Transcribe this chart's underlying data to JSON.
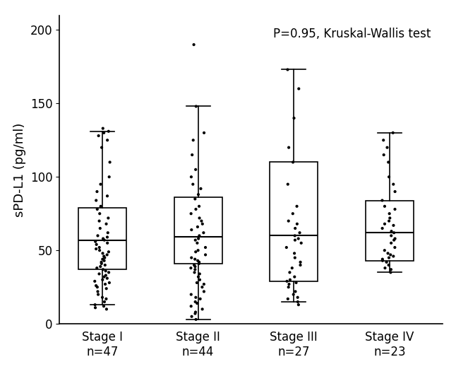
{
  "annotation": "P=0.95, Kruskal-Wallis test",
  "ylabel": "sPD-L1 (pg/ml)",
  "groups": [
    "Stage I",
    "Stage II",
    "Stage III",
    "Stage IV"
  ],
  "ns": [
    47,
    44,
    27,
    23
  ],
  "ylim": [
    0,
    210
  ],
  "yticks": [
    0,
    50,
    100,
    150,
    200
  ],
  "box_stats": {
    "Stage I": {
      "whislo": 13,
      "q1": 37,
      "med": 57,
      "q3": 79,
      "whishi": 131
    },
    "Stage II": {
      "whislo": 3,
      "q1": 41,
      "med": 59,
      "q3": 86,
      "whishi": 148
    },
    "Stage III": {
      "whislo": 15,
      "q1": 29,
      "med": 60,
      "q3": 110,
      "whishi": 173
    },
    "Stage IV": {
      "whislo": 35,
      "q1": 43,
      "med": 62,
      "q3": 84,
      "whishi": 130
    }
  },
  "jitter_data": {
    "Stage I": [
      10,
      13,
      15,
      17,
      18,
      20,
      22,
      24,
      25,
      26,
      27,
      28,
      29,
      30,
      31,
      32,
      33,
      34,
      35,
      36,
      37,
      38,
      39,
      40,
      41,
      42,
      43,
      44,
      45,
      46,
      47,
      48,
      49,
      50,
      51,
      52,
      54,
      55,
      56,
      57,
      58,
      59,
      60,
      62,
      65,
      68,
      70,
      72,
      75,
      78,
      80,
      84,
      87,
      90,
      95,
      100,
      110,
      120,
      125,
      128,
      130,
      131,
      133,
      12,
      11
    ],
    "Stage II": [
      3,
      5,
      7,
      8,
      10,
      12,
      14,
      15,
      17,
      18,
      20,
      22,
      25,
      27,
      28,
      30,
      32,
      34,
      35,
      37,
      38,
      39,
      40,
      41,
      42,
      43,
      44,
      45,
      47,
      49,
      50,
      52,
      55,
      57,
      58,
      60,
      62,
      64,
      66,
      68,
      70,
      72,
      75,
      78,
      80,
      85,
      88,
      92,
      95,
      100,
      105,
      115,
      125,
      130,
      148,
      190
    ],
    "Stage III": [
      15,
      17,
      18,
      20,
      22,
      25,
      27,
      28,
      29,
      30,
      32,
      35,
      38,
      40,
      42,
      45,
      48,
      52,
      55,
      57,
      58,
      60,
      62,
      65,
      68,
      70,
      75,
      80,
      95,
      110,
      120,
      140,
      160,
      173,
      13
    ],
    "Stage IV": [
      35,
      37,
      38,
      40,
      42,
      43,
      44,
      45,
      46,
      47,
      48,
      50,
      52,
      55,
      57,
      58,
      60,
      62,
      63,
      65,
      67,
      68,
      70,
      72,
      75,
      78,
      80,
      84,
      90,
      95,
      100,
      110,
      115,
      120,
      125,
      130
    ]
  },
  "dot_color": "#000000",
  "box_color": "#ffffff",
  "box_edgecolor": "#000000",
  "background_color": "#ffffff",
  "annotation_fontsize": 12,
  "label_fontsize": 13,
  "tick_fontsize": 12,
  "box_width": 0.5,
  "jitter_amount": 0.08
}
